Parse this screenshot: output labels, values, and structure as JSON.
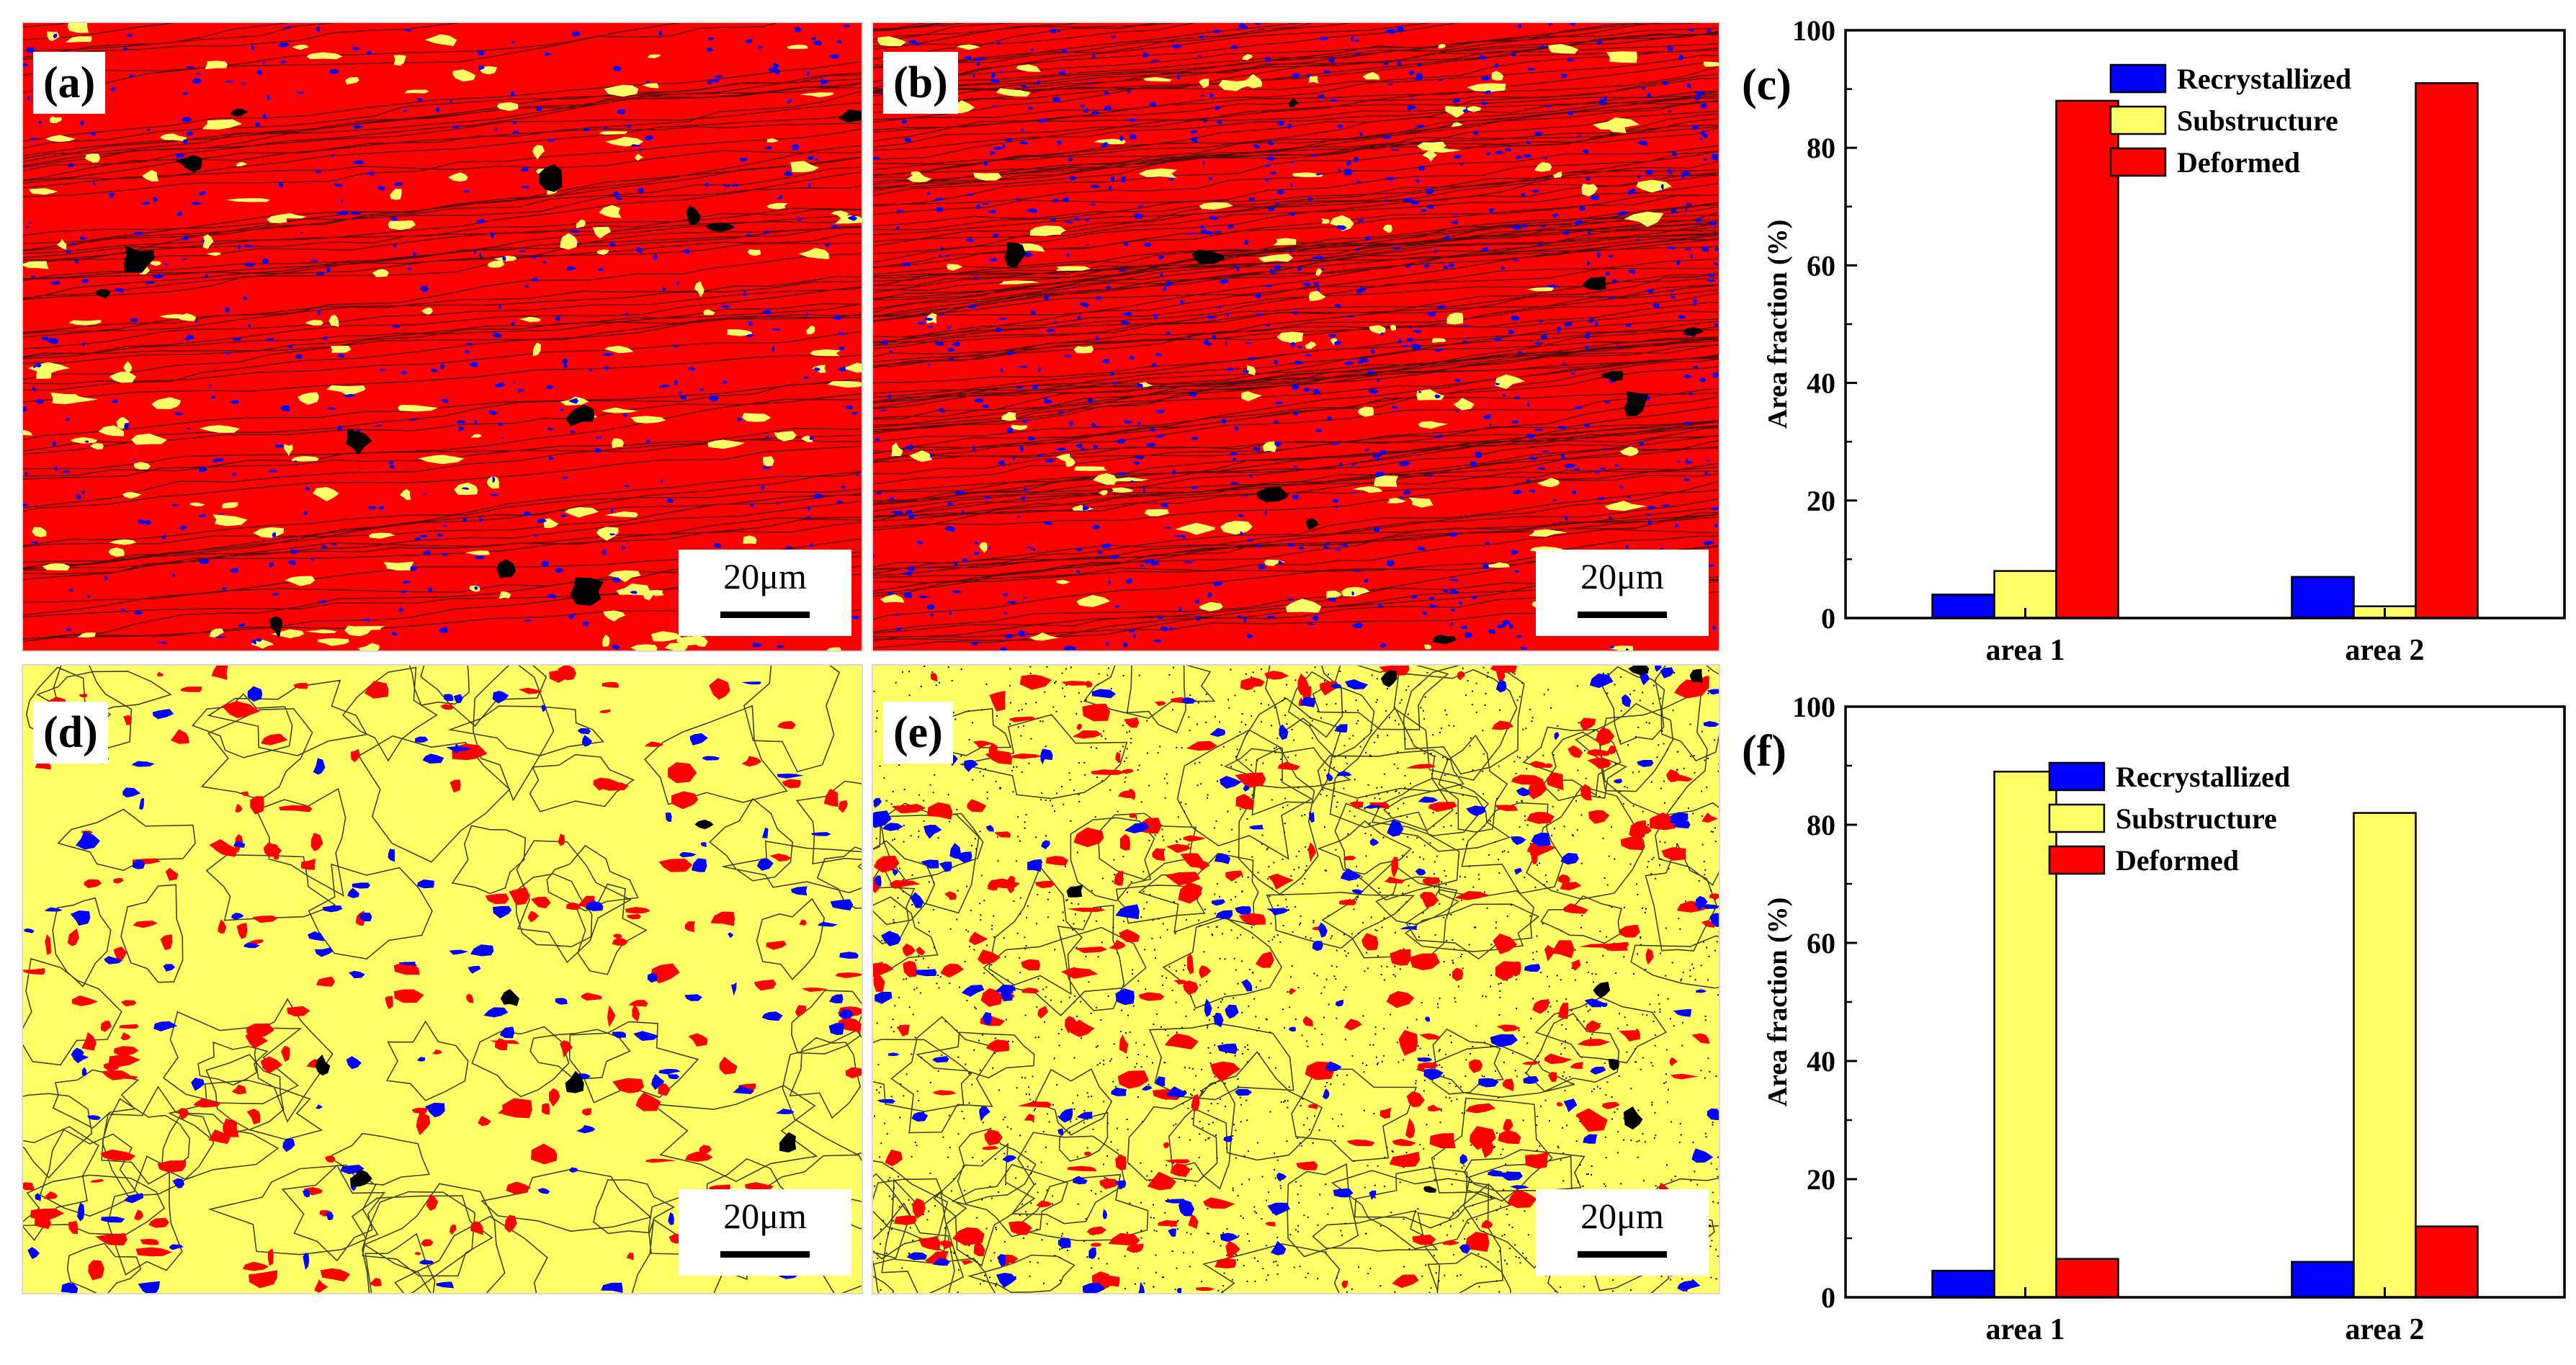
{
  "colors": {
    "recrystallized": "#0000ff",
    "substructure": "#ffff66",
    "deformed": "#ff0000",
    "grain_boundary": "#111111",
    "panel_border": "#d8d8d8"
  },
  "panels": [
    {
      "label": "(a)",
      "scale": "20μm",
      "base": "deformed",
      "pattern": "aligned-bands"
    },
    {
      "label": "(b)",
      "scale": "20μm",
      "base": "deformed",
      "pattern": "dense-bands"
    },
    {
      "label": "(d)",
      "scale": "20μm",
      "base": "substructure",
      "pattern": "equiaxed"
    },
    {
      "label": "(e)",
      "scale": "20μm",
      "base": "substructure",
      "pattern": "equiaxed-dotted"
    }
  ],
  "chart_data": [
    {
      "panel_label": "(c)",
      "type": "bar",
      "categories": [
        "area 1",
        "area 2"
      ],
      "series": [
        {
          "name": "Recrystallized",
          "color": "#0000ff",
          "values": [
            4,
            7
          ]
        },
        {
          "name": "Substructure",
          "color": "#ffff66",
          "values": [
            8,
            2
          ]
        },
        {
          "name": "Deformed",
          "color": "#ff0000",
          "values": [
            88,
            91
          ]
        }
      ],
      "ylabel": "Area fraction (%)",
      "xlabel": "",
      "ylim": [
        0,
        100
      ],
      "yticks": [
        "0",
        "20",
        "40",
        "60",
        "80",
        "100"
      ],
      "legend": "top-left inside"
    },
    {
      "panel_label": "(f)",
      "type": "bar",
      "categories": [
        "area 1",
        "area 2"
      ],
      "series": [
        {
          "name": "Recrystallized",
          "color": "#0000ff",
          "values": [
            4.5,
            6
          ]
        },
        {
          "name": "Substructure",
          "color": "#ffff66",
          "values": [
            89,
            82
          ]
        },
        {
          "name": "Deformed",
          "color": "#ff0000",
          "values": [
            6.5,
            12
          ]
        }
      ],
      "ylabel": "Area fraction (%)",
      "xlabel": "",
      "ylim": [
        0,
        100
      ],
      "yticks": [
        "0",
        "20",
        "40",
        "60",
        "80",
        "100"
      ],
      "legend": "top-left inside"
    }
  ]
}
